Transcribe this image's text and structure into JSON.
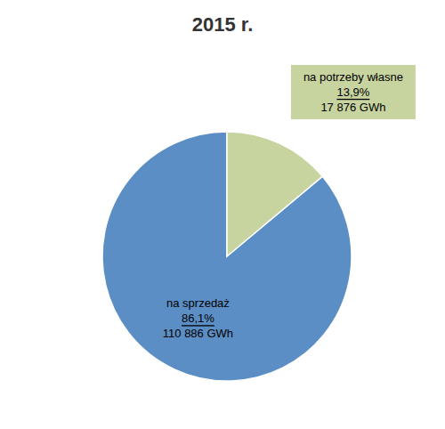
{
  "chart_data": {
    "type": "pie",
    "title": "2015 r.",
    "categories": [
      "na sprzedaż",
      "na potrzeby własne"
    ],
    "values": [
      86.1,
      13.9
    ],
    "value_labels": [
      "86,1%",
      "13,9%"
    ],
    "annotations": [
      "110 886 GWh",
      "17 876 GWh"
    ],
    "colors": [
      "#5b8ec4",
      "#c8d4a0"
    ],
    "data_labels": true
  }
}
